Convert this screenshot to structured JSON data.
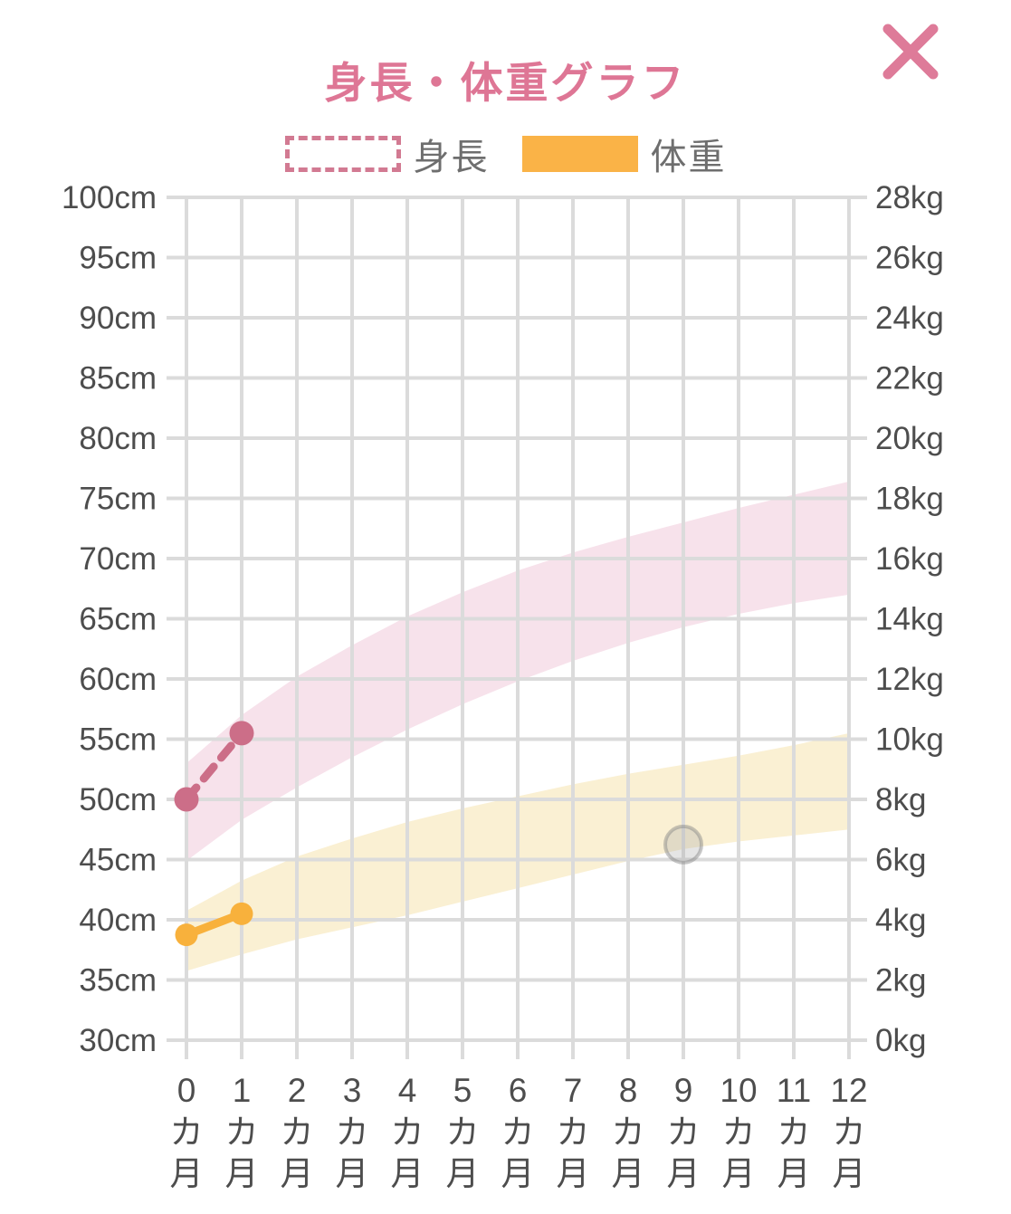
{
  "window": {
    "title": "身長・体重グラフ",
    "title_color": "#DE7695"
  },
  "close": {
    "color": "#DE7B99"
  },
  "legend": {
    "items": [
      {
        "label": "身長",
        "style": "dashed-outline",
        "color": "#D27A92"
      },
      {
        "label": "体重",
        "style": "solid",
        "color": "#FAB347"
      }
    ]
  },
  "chart_data": {
    "type": "line",
    "title": "身長・体重グラフ",
    "grid": true,
    "legend_position": "top",
    "x": [
      0,
      1,
      2,
      3,
      4,
      5,
      6,
      7,
      8,
      9,
      10,
      11,
      12
    ],
    "x_tick_labels": [
      "0カ月",
      "1カ月",
      "2カ月",
      "3カ月",
      "4カ月",
      "5カ月",
      "6カ月",
      "7カ月",
      "8カ月",
      "9カ月",
      "10カ月",
      "11カ月",
      "12カ月"
    ],
    "y_left": {
      "unit": "cm",
      "min": 30,
      "max": 100,
      "step": 5,
      "tick_labels": [
        "100cm",
        "95cm",
        "90cm",
        "85cm",
        "80cm",
        "75cm",
        "70cm",
        "65cm",
        "60cm",
        "55cm",
        "50cm",
        "45cm",
        "40cm",
        "35cm",
        "30cm"
      ]
    },
    "y_right": {
      "unit": "kg",
      "min": 0,
      "max": 28,
      "step": 2,
      "tick_labels": [
        "28kg",
        "26kg",
        "24kg",
        "22kg",
        "20kg",
        "18kg",
        "16kg",
        "14kg",
        "12kg",
        "10kg",
        "8kg",
        "6kg",
        "4kg",
        "2kg",
        "0kg"
      ]
    },
    "bands": [
      {
        "name": "height-reference-band",
        "axis": "left",
        "color": "#F7E2EB",
        "upper": [
          53.0,
          57.0,
          60.2,
          62.8,
          65.2,
          67.2,
          69.0,
          70.5,
          71.8,
          73.0,
          74.2,
          75.3,
          76.4
        ],
        "lower": [
          44.9,
          48.3,
          51.0,
          53.5,
          55.8,
          57.9,
          59.8,
          61.5,
          63.0,
          64.3,
          65.4,
          66.3,
          67.0
        ]
      },
      {
        "name": "weight-reference-band",
        "axis": "right",
        "color": "#FAF0D3",
        "upper": [
          4.3,
          5.3,
          6.1,
          6.7,
          7.25,
          7.7,
          8.1,
          8.5,
          8.85,
          9.15,
          9.45,
          9.8,
          10.2
        ],
        "lower": [
          2.3,
          2.85,
          3.35,
          3.75,
          4.15,
          4.6,
          5.05,
          5.5,
          5.95,
          6.35,
          6.6,
          6.8,
          7.0
        ]
      }
    ],
    "series": [
      {
        "name": "身長",
        "axis": "left",
        "line_style": "dashed",
        "color": "#CC6E88",
        "points": [
          {
            "x": 0,
            "y": 50.0
          },
          {
            "x": 1,
            "y": 55.5
          }
        ]
      },
      {
        "name": "体重",
        "axis": "right",
        "line_style": "solid",
        "color": "#F8B13C",
        "points": [
          {
            "x": 0,
            "y": 3.5
          },
          {
            "x": 1,
            "y": 4.2
          }
        ]
      }
    ],
    "markers": [
      {
        "name": "gray-marker",
        "axis": "right",
        "x": 9,
        "y": 6.5,
        "fill": "rgba(170,170,170,0.30)",
        "stroke": "rgba(130,130,130,0.45)"
      }
    ],
    "colors": {
      "gridline": "#DBDBDB",
      "axis_text": "#4D4D4D"
    }
  }
}
